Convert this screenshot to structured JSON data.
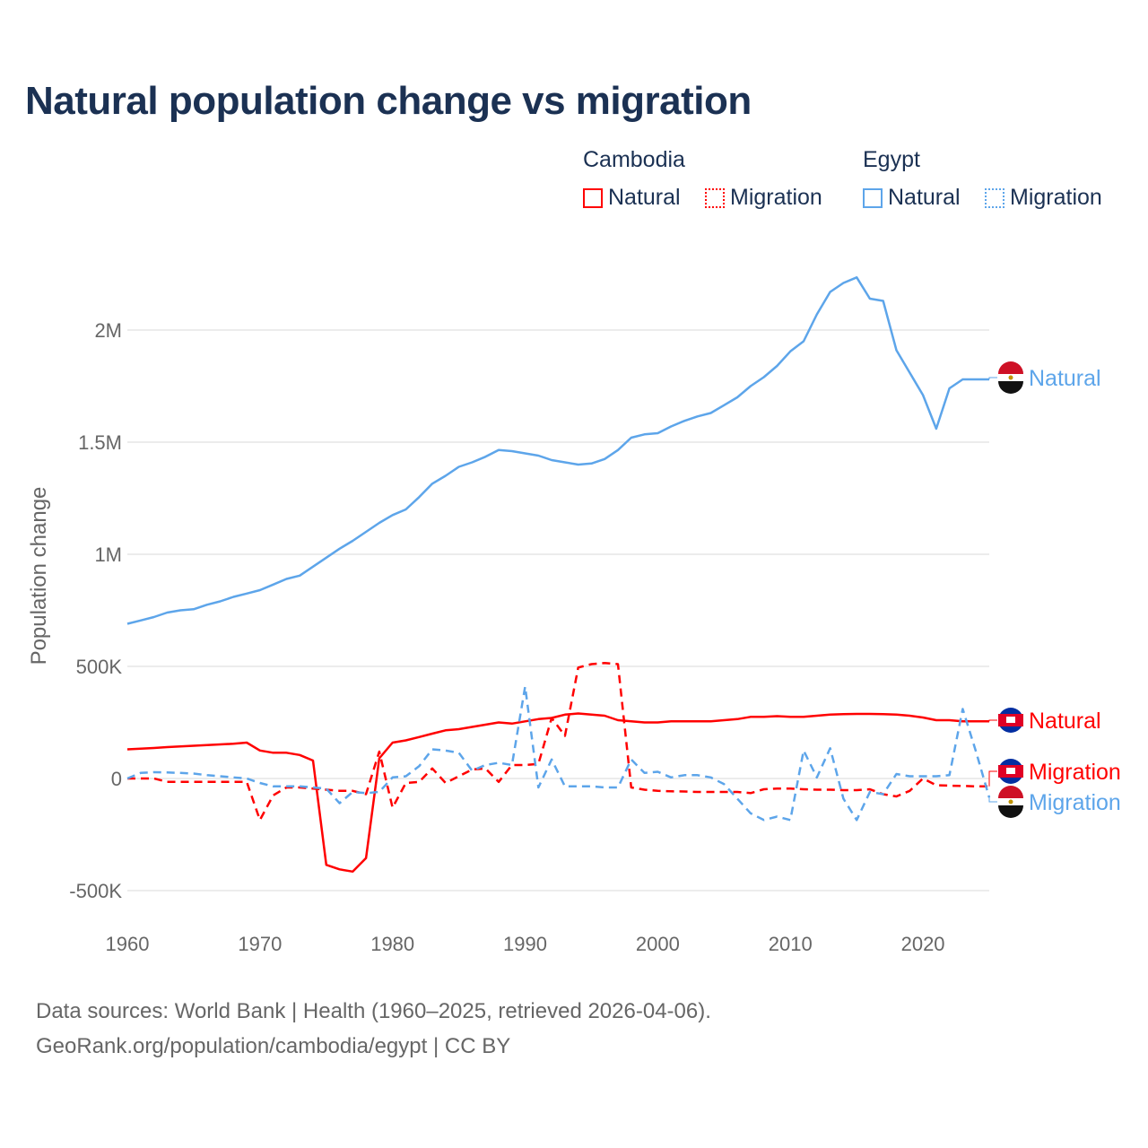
{
  "title": "Natural population change vs migration",
  "legend": {
    "groups": [
      {
        "name": "Cambodia",
        "color": "#ff0000",
        "items": [
          {
            "label": "Natural",
            "style": "solid"
          },
          {
            "label": "Migration",
            "style": "dotted"
          }
        ]
      },
      {
        "name": "Egypt",
        "color": "#5da5ea",
        "items": [
          {
            "label": "Natural",
            "style": "solid"
          },
          {
            "label": "Migration",
            "style": "dotted"
          }
        ]
      }
    ]
  },
  "footer": {
    "line1": "Data sources: World Bank | Health (1960–2025, retrieved 2026-04-06).",
    "line2": "GeoRank.org/population/cambodia/egypt | CC BY"
  },
  "chart_data": {
    "type": "line",
    "title": "Natural population change vs migration",
    "xlabel": "",
    "ylabel": "Population change",
    "xlim": [
      1960,
      2025
    ],
    "ylim": [
      -500000,
      2300000
    ],
    "x_ticks": [
      1960,
      1970,
      1980,
      1990,
      2000,
      2010,
      2020
    ],
    "x_tick_labels": [
      "1960",
      "1970",
      "1980",
      "1990",
      "2000",
      "2010",
      "2020"
    ],
    "y_ticks": [
      -500000,
      0,
      500000,
      1000000,
      1500000,
      2000000
    ],
    "y_tick_labels": [
      "-500K",
      "0",
      "500K",
      "1M",
      "1.5M",
      "2M"
    ],
    "grid": true,
    "x_start": 1960,
    "series": [
      {
        "name": "Cambodia Natural",
        "end_label": "Natural",
        "country": "Cambodia",
        "color": "#ff0000",
        "dash": false,
        "values": [
          130000,
          133000,
          136000,
          140000,
          143000,
          146000,
          149000,
          152000,
          155000,
          160000,
          125000,
          115000,
          115000,
          105000,
          80000,
          -385000,
          -405000,
          -415000,
          -355000,
          90000,
          160000,
          170000,
          185000,
          200000,
          215000,
          220000,
          230000,
          240000,
          250000,
          245000,
          255000,
          265000,
          270000,
          285000,
          290000,
          285000,
          280000,
          260000,
          255000,
          250000,
          250000,
          255000,
          255000,
          255000,
          255000,
          260000,
          265000,
          275000,
          275000,
          278000,
          275000,
          275000,
          280000,
          285000,
          287000,
          288000,
          288000,
          287000,
          285000,
          280000,
          272000,
          260000,
          260000,
          255000,
          255000,
          255000
        ]
      },
      {
        "name": "Cambodia Migration",
        "end_label": "Migration",
        "country": "Cambodia",
        "color": "#ff0000",
        "dash": true,
        "values": [
          0,
          0,
          0,
          -15000,
          -15000,
          -15000,
          -15000,
          -15000,
          -15000,
          -15000,
          -185000,
          -75000,
          -40000,
          -40000,
          -45000,
          -50000,
          -55000,
          -55000,
          -70000,
          120000,
          -130000,
          -20000,
          -15000,
          45000,
          -20000,
          10000,
          40000,
          45000,
          -15000,
          60000,
          60000,
          65000,
          270000,
          190000,
          495000,
          510000,
          515000,
          510000,
          -40000,
          -50000,
          -55000,
          -57000,
          -58000,
          -60000,
          -60000,
          -60000,
          -60000,
          -65000,
          -48000,
          -45000,
          -45000,
          -48000,
          -50000,
          -50000,
          -52000,
          -52000,
          -48000,
          -70000,
          -80000,
          -55000,
          0,
          -30000,
          -32000,
          -33000,
          -35000,
          -35000
        ]
      },
      {
        "name": "Egypt Natural",
        "end_label": "Natural",
        "country": "Egypt",
        "color": "#5da5ea",
        "dash": false,
        "values": [
          690000,
          705000,
          720000,
          740000,
          750000,
          755000,
          775000,
          790000,
          810000,
          825000,
          840000,
          865000,
          890000,
          905000,
          945000,
          985000,
          1025000,
          1060000,
          1100000,
          1140000,
          1175000,
          1200000,
          1255000,
          1315000,
          1350000,
          1390000,
          1410000,
          1435000,
          1465000,
          1460000,
          1450000,
          1440000,
          1420000,
          1410000,
          1400000,
          1405000,
          1425000,
          1465000,
          1520000,
          1535000,
          1540000,
          1570000,
          1595000,
          1615000,
          1630000,
          1665000,
          1700000,
          1750000,
          1790000,
          1840000,
          1905000,
          1950000,
          2070000,
          2170000,
          2210000,
          2235000,
          2140000,
          2130000,
          1910000,
          1810000,
          1710000,
          1560000,
          1740000,
          1780000,
          1780000,
          1780000
        ]
      },
      {
        "name": "Egypt Migration",
        "end_label": "Migration",
        "country": "Egypt",
        "color": "#5da5ea",
        "dash": true,
        "values": [
          0,
          25000,
          28000,
          27000,
          25000,
          22000,
          15000,
          10000,
          5000,
          0,
          -20000,
          -35000,
          -35000,
          -35000,
          -40000,
          -45000,
          -110000,
          -60000,
          -65000,
          -60000,
          5000,
          10000,
          55000,
          130000,
          125000,
          115000,
          35000,
          60000,
          70000,
          60000,
          410000,
          -40000,
          85000,
          -35000,
          -35000,
          -35000,
          -40000,
          -40000,
          85000,
          25000,
          30000,
          5000,
          15000,
          15000,
          5000,
          -25000,
          -90000,
          -155000,
          -185000,
          -170000,
          -185000,
          125000,
          5000,
          135000,
          -90000,
          -185000,
          -60000,
          -70000,
          20000,
          10000,
          10000,
          10000,
          15000,
          310000,
          120000,
          -85000
        ]
      }
    ]
  }
}
